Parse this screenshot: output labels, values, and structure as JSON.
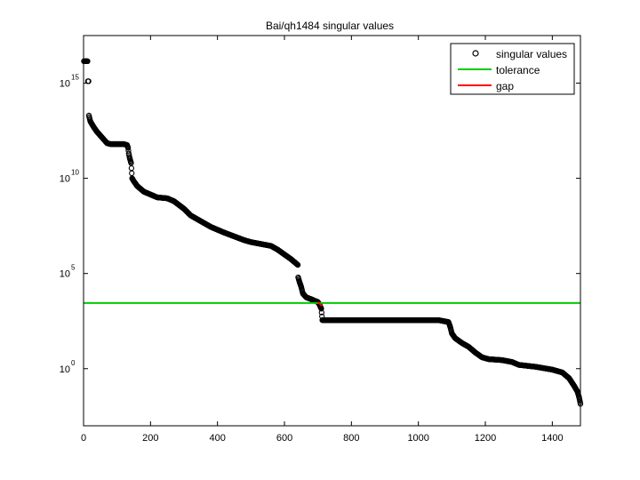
{
  "chart_data": {
    "type": "scatter",
    "title": "Bai/qh1484 singular values",
    "xlabel": "",
    "ylabel": "",
    "y_scale": "log",
    "xlim": [
      0,
      1484
    ],
    "ylim_log10": [
      -3,
      17.5
    ],
    "x_ticks": [
      0,
      200,
      400,
      600,
      800,
      1000,
      1200,
      1400
    ],
    "y_ticks": [
      {
        "base": "10",
        "exp": "0",
        "log10": 0
      },
      {
        "base": "10",
        "exp": "5",
        "log10": 5
      },
      {
        "base": "10",
        "exp": "10",
        "log10": 10
      },
      {
        "base": "10",
        "exp": "15",
        "log10": 15
      }
    ],
    "grid": false,
    "legend": {
      "placement": "top-right",
      "entries": [
        {
          "label": "singular values",
          "marker": "circle",
          "color": "#000000"
        },
        {
          "label": "tolerance",
          "marker": "line",
          "color": "#00cc00"
        },
        {
          "label": "gap",
          "marker": "line",
          "color": "#ff0000"
        }
      ]
    },
    "series": [
      {
        "name": "singular values",
        "color": "#000000",
        "points_log10": [
          [
            1,
            16.15
          ],
          [
            12,
            16.15
          ],
          [
            13,
            15.1
          ],
          [
            15,
            15.1
          ],
          [
            16,
            13.3
          ],
          [
            20,
            13.0
          ],
          [
            30,
            12.7
          ],
          [
            40,
            12.45
          ],
          [
            50,
            12.25
          ],
          [
            60,
            12.05
          ],
          [
            70,
            11.85
          ],
          [
            80,
            11.8
          ],
          [
            100,
            11.8
          ],
          [
            120,
            11.8
          ],
          [
            130,
            11.75
          ],
          [
            133,
            11.6
          ],
          [
            135,
            11.3
          ],
          [
            138,
            11.05
          ],
          [
            142,
            10.8
          ],
          [
            145,
            10.0
          ],
          [
            150,
            9.85
          ],
          [
            160,
            9.6
          ],
          [
            180,
            9.3
          ],
          [
            200,
            9.15
          ],
          [
            220,
            9.0
          ],
          [
            250,
            8.95
          ],
          [
            270,
            8.8
          ],
          [
            300,
            8.4
          ],
          [
            320,
            8.05
          ],
          [
            350,
            7.75
          ],
          [
            380,
            7.45
          ],
          [
            400,
            7.3
          ],
          [
            420,
            7.15
          ],
          [
            450,
            6.95
          ],
          [
            480,
            6.75
          ],
          [
            500,
            6.65
          ],
          [
            530,
            6.55
          ],
          [
            560,
            6.45
          ],
          [
            580,
            6.25
          ],
          [
            600,
            6.0
          ],
          [
            620,
            5.75
          ],
          [
            640,
            5.45
          ],
          [
            641,
            4.8
          ],
          [
            645,
            4.55
          ],
          [
            650,
            4.3
          ],
          [
            655,
            3.95
          ],
          [
            665,
            3.75
          ],
          [
            680,
            3.65
          ],
          [
            700,
            3.5
          ],
          [
            705,
            3.35
          ],
          [
            710,
            3.15
          ],
          [
            713,
            2.55
          ],
          [
            730,
            2.55
          ],
          [
            800,
            2.55
          ],
          [
            900,
            2.55
          ],
          [
            1000,
            2.55
          ],
          [
            1060,
            2.55
          ],
          [
            1090,
            2.45
          ],
          [
            1095,
            2.2
          ],
          [
            1100,
            1.85
          ],
          [
            1110,
            1.6
          ],
          [
            1130,
            1.35
          ],
          [
            1150,
            1.15
          ],
          [
            1170,
            0.85
          ],
          [
            1190,
            0.6
          ],
          [
            1210,
            0.5
          ],
          [
            1250,
            0.45
          ],
          [
            1280,
            0.35
          ],
          [
            1300,
            0.2
          ],
          [
            1350,
            0.1
          ],
          [
            1400,
            -0.05
          ],
          [
            1430,
            -0.2
          ],
          [
            1450,
            -0.5
          ],
          [
            1465,
            -0.9
          ],
          [
            1475,
            -1.2
          ],
          [
            1480,
            -1.5
          ],
          [
            1484,
            -1.85
          ]
        ]
      }
    ],
    "tolerance": {
      "name": "tolerance",
      "color": "#00cc00",
      "log10": 3.45
    },
    "gap": {
      "name": "gap",
      "color": "#ff0000",
      "x": [
        700,
        712
      ],
      "log10": [
        3.5,
        3.3
      ]
    }
  }
}
